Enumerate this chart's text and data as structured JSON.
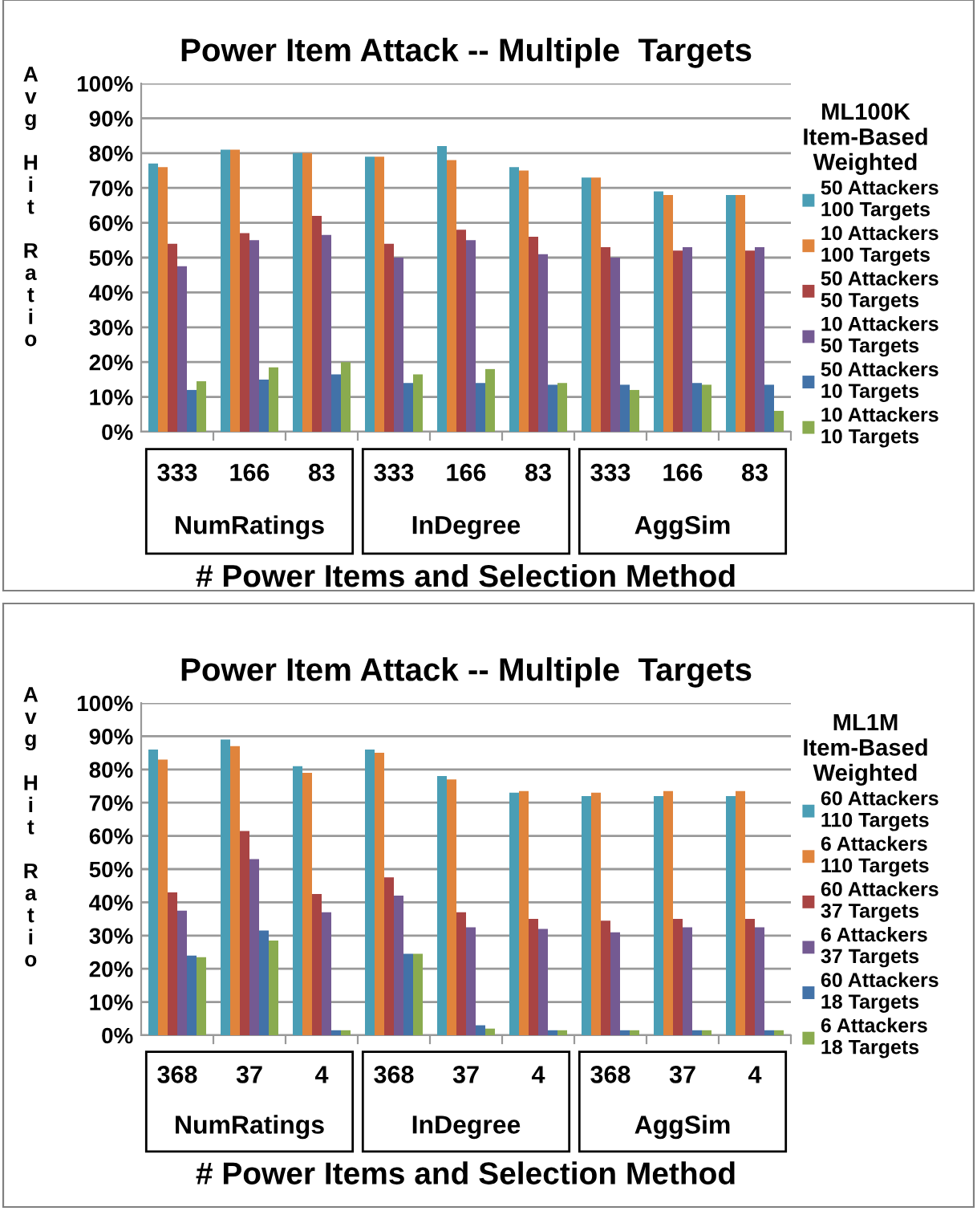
{
  "chart_data": [
    {
      "type": "bar",
      "title": "Power Item Attack -- Multiple  Targets",
      "xlabel": "# Power Items and Selection Method",
      "ylabel": "Avg Hit Ratio",
      "legend_title": "ML100K\nItem-Based\nWeighted",
      "categories": [
        "333",
        "166",
        "83",
        "333",
        "166",
        "83",
        "333",
        "166",
        "83"
      ],
      "annotations": [
        "NumRatings",
        "InDegree",
        "AggSim"
      ],
      "series": [
        {
          "name": "50 Attackers\n100 Targets",
          "color": "#4a9eb5",
          "values": [
            77,
            81,
            80,
            79,
            82,
            76,
            73,
            69,
            68
          ]
        },
        {
          "name": "10 Attackers\n100 Targets",
          "color": "#e0843c",
          "values": [
            76,
            81,
            80,
            79,
            78,
            75,
            73,
            68,
            68
          ]
        },
        {
          "name": "50 Attackers\n50 Targets",
          "color": "#a94443",
          "values": [
            54,
            57,
            62,
            54,
            58,
            56,
            53,
            52,
            52
          ]
        },
        {
          "name": "10 Attackers\n50 Targets",
          "color": "#745a92",
          "values": [
            47.5,
            55,
            56.5,
            50,
            55,
            51,
            50,
            53,
            53
          ]
        },
        {
          "name": "50 Attackers\n10 Targets",
          "color": "#4272a8",
          "values": [
            12,
            15,
            16.5,
            14,
            14,
            13.5,
            13.5,
            14,
            13.5
          ]
        },
        {
          "name": "10 Attackers\n10 Targets",
          "color": "#8aab4f",
          "values": [
            14.5,
            18.5,
            20,
            16.5,
            18,
            14,
            12,
            13.5,
            6
          ]
        }
      ],
      "ylim": [
        0,
        100
      ],
      "yticks": [
        {
          "value": 0,
          "label": "0%"
        },
        {
          "value": 10,
          "label": "10%"
        },
        {
          "value": 20,
          "label": "20%"
        },
        {
          "value": 30,
          "label": "30%"
        },
        {
          "value": 40,
          "label": "40%"
        },
        {
          "value": 50,
          "label": "50%"
        },
        {
          "value": 60,
          "label": "60%"
        },
        {
          "value": 70,
          "label": "70%"
        },
        {
          "value": 80,
          "label": "80%"
        },
        {
          "value": 90,
          "label": "90%"
        },
        {
          "value": 100,
          "label": "100%"
        }
      ],
      "grid": "y",
      "legend": "right"
    },
    {
      "type": "bar",
      "title": "Power Item Attack -- Multiple  Targets",
      "xlabel": "# Power Items and Selection Method",
      "ylabel": "Avg Hit Ratio",
      "legend_title": "ML1M\nItem-Based\nWeighted",
      "categories": [
        "368",
        "37",
        "4",
        "368",
        "37",
        "4",
        "368",
        "37",
        "4"
      ],
      "annotations": [
        "NumRatings",
        "InDegree",
        "AggSim"
      ],
      "series": [
        {
          "name": "60 Attackers\n110 Targets",
          "color": "#4a9eb5",
          "values": [
            86,
            89,
            81,
            86,
            78,
            73,
            72,
            72,
            72
          ]
        },
        {
          "name": "6 Attackers\n110 Targets",
          "color": "#e0843c",
          "values": [
            83,
            87,
            79,
            85,
            77,
            73.5,
            73,
            73.5,
            73.5
          ]
        },
        {
          "name": "60 Attackers\n37 Targets",
          "color": "#a94443",
          "values": [
            43,
            61.5,
            42.5,
            47.5,
            37,
            35,
            34.5,
            35,
            35
          ]
        },
        {
          "name": "6 Attackers\n37 Targets",
          "color": "#745a92",
          "values": [
            37.5,
            53,
            37,
            42,
            32.5,
            32,
            31,
            32.5,
            32.5
          ]
        },
        {
          "name": "60 Attackers\n18 Targets",
          "color": "#4272a8",
          "values": [
            24,
            31.5,
            1.5,
            24.5,
            3,
            1.5,
            1.5,
            1.5,
            1.5
          ]
        },
        {
          "name": "6 Attackers\n18 Targets",
          "color": "#8aab4f",
          "values": [
            23.5,
            28.5,
            1.5,
            24.5,
            2,
            1.5,
            1.5,
            1.5,
            1.5
          ]
        }
      ],
      "ylim": [
        0,
        100
      ],
      "yticks": [
        {
          "value": 0,
          "label": "0%"
        },
        {
          "value": 10,
          "label": "10%"
        },
        {
          "value": 20,
          "label": "20%"
        },
        {
          "value": 30,
          "label": "30%"
        },
        {
          "value": 40,
          "label": "40%"
        },
        {
          "value": 50,
          "label": "50%"
        },
        {
          "value": 60,
          "label": "60%"
        },
        {
          "value": 70,
          "label": "70%"
        },
        {
          "value": 80,
          "label": "80%"
        },
        {
          "value": 90,
          "label": "90%"
        },
        {
          "value": 100,
          "label": "100%"
        }
      ],
      "grid": "y",
      "legend": "right"
    }
  ]
}
